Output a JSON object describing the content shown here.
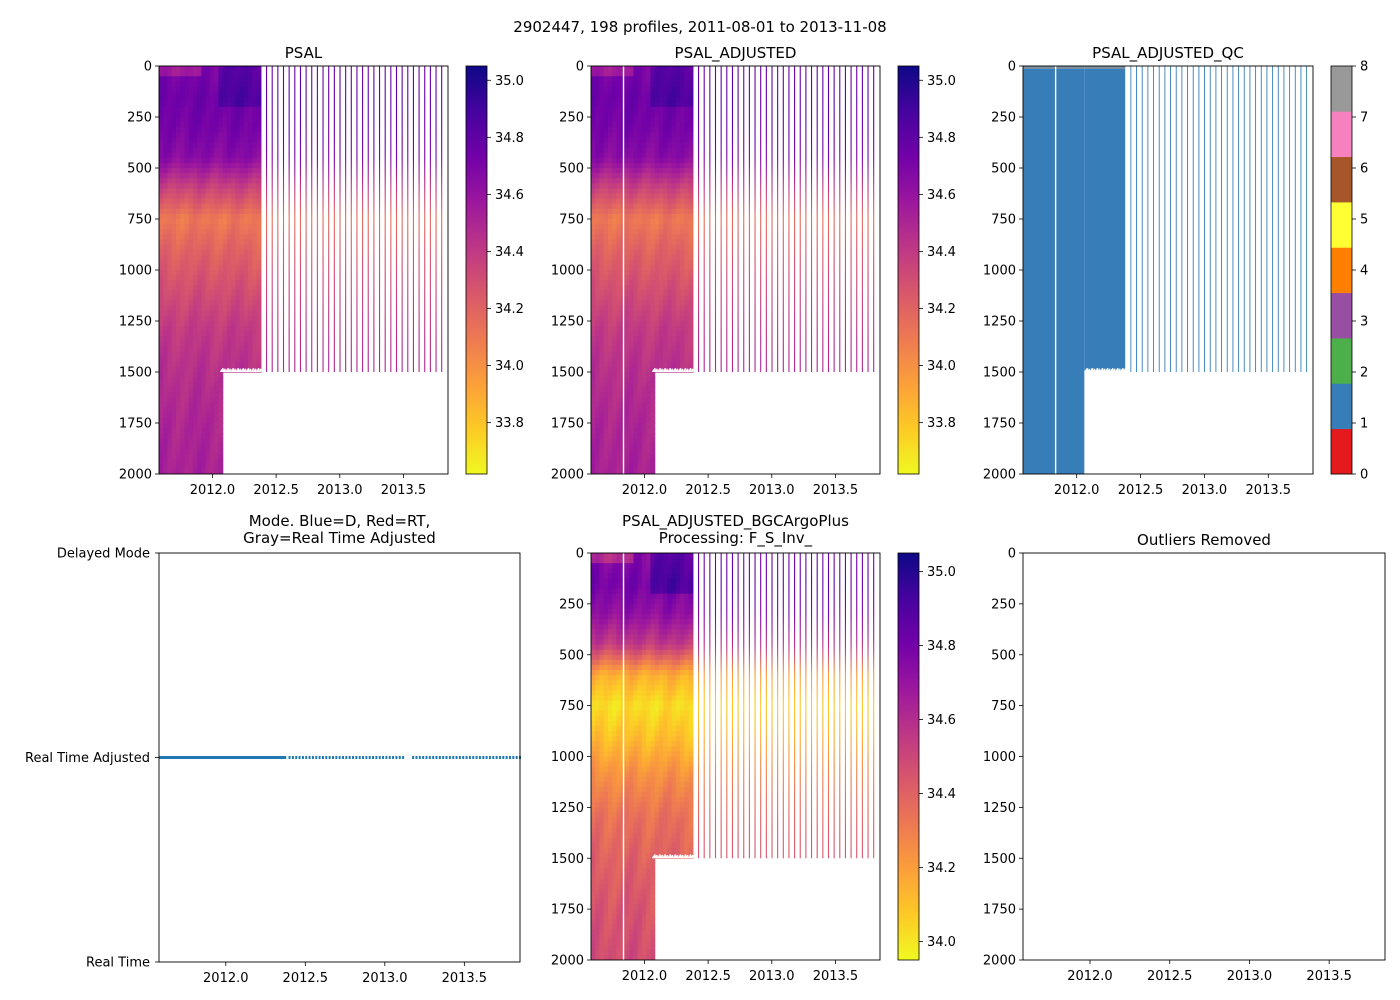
{
  "figure": {
    "suptitle": "2902447, 198 profiles, 2011-08-01 to 2013-11-08"
  },
  "colors": {
    "plasma": [
      "#0d0887",
      "#46039f",
      "#7201a8",
      "#9c179e",
      "#bd3786",
      "#d8576b",
      "#ed7953",
      "#fb9f3a",
      "#fdca26",
      "#f0f921"
    ],
    "qc": [
      "#e41a1c",
      "#377eb8",
      "#4daf4a",
      "#984ea3",
      "#ff7f00",
      "#ffff33",
      "#a65628",
      "#f781bf",
      "#999999"
    ],
    "mode_line": "#1f77b4"
  },
  "chart_data": [
    {
      "id": "psal",
      "type": "heatmap",
      "title": "PSAL",
      "title_line2": "",
      "xlim": [
        2011.58,
        2013.85
      ],
      "ylim": [
        2000,
        0
      ],
      "xticks": [
        "2012.0",
        "2012.5",
        "2013.0",
        "2013.5"
      ],
      "xtick_values": [
        2012.0,
        2012.5,
        2013.0,
        2013.5
      ],
      "yticks": [
        "0",
        "250",
        "500",
        "750",
        "1000",
        "1250",
        "1500",
        "1750",
        "2000"
      ],
      "ytick_values": [
        0,
        250,
        500,
        750,
        1000,
        1250,
        1500,
        1750,
        2000
      ],
      "colorbar": {
        "cmap": "plasma_r",
        "range": [
          33.62,
          35.05
        ],
        "ticks": [
          "33.8",
          "34.0",
          "34.2",
          "34.4",
          "34.6",
          "34.8",
          "35.0"
        ],
        "tick_values": [
          33.8,
          34.0,
          34.2,
          34.4,
          34.6,
          34.8,
          35.0
        ]
      },
      "dense_until": 2012.38,
      "deep_until": 2012.06,
      "shallow_max_depth": 1500,
      "sparse_end": 2013.8,
      "sparse_count": 32,
      "gap_at": null,
      "profile": [
        [
          0,
          34.7
        ],
        [
          150,
          34.75
        ],
        [
          300,
          34.72
        ],
        [
          450,
          34.65
        ],
        [
          600,
          34.35
        ],
        [
          750,
          34.1
        ],
        [
          900,
          34.2
        ],
        [
          1100,
          34.3
        ],
        [
          1300,
          34.4
        ],
        [
          1500,
          34.45
        ],
        [
          1750,
          34.5
        ],
        [
          2000,
          34.52
        ]
      ]
    },
    {
      "id": "psal_adjusted",
      "type": "heatmap",
      "title": "PSAL_ADJUSTED",
      "title_line2": "",
      "xlim": [
        2011.58,
        2013.85
      ],
      "ylim": [
        2000,
        0
      ],
      "xticks": [
        "2012.0",
        "2012.5",
        "2013.0",
        "2013.5"
      ],
      "xtick_values": [
        2012.0,
        2012.5,
        2013.0,
        2013.5
      ],
      "yticks": [
        "0",
        "250",
        "500",
        "750",
        "1000",
        "1250",
        "1500",
        "1750",
        "2000"
      ],
      "ytick_values": [
        0,
        250,
        500,
        750,
        1000,
        1250,
        1500,
        1750,
        2000
      ],
      "colorbar": {
        "cmap": "plasma_r",
        "range": [
          33.62,
          35.05
        ],
        "ticks": [
          "33.8",
          "34.0",
          "34.2",
          "34.4",
          "34.6",
          "34.8",
          "35.0"
        ],
        "tick_values": [
          33.8,
          34.0,
          34.2,
          34.4,
          34.6,
          34.8,
          35.0
        ]
      },
      "dense_until": 2012.38,
      "deep_until": 2012.06,
      "shallow_max_depth": 1500,
      "sparse_end": 2013.8,
      "sparse_count": 32,
      "gap_at": 2011.83,
      "profile": [
        [
          0,
          34.7
        ],
        [
          150,
          34.75
        ],
        [
          300,
          34.72
        ],
        [
          450,
          34.65
        ],
        [
          600,
          34.35
        ],
        [
          750,
          34.1
        ],
        [
          900,
          34.2
        ],
        [
          1100,
          34.3
        ],
        [
          1300,
          34.4
        ],
        [
          1500,
          34.45
        ],
        [
          1750,
          34.5
        ],
        [
          2000,
          34.52
        ]
      ]
    },
    {
      "id": "psal_adjusted_qc",
      "type": "heatmap",
      "title": "PSAL_ADJUSTED_QC",
      "title_line2": "",
      "xlim": [
        2011.58,
        2013.85
      ],
      "ylim": [
        2000,
        0
      ],
      "xticks": [
        "2012.0",
        "2012.5",
        "2013.0",
        "2013.5"
      ],
      "xtick_values": [
        2012.0,
        2012.5,
        2013.0,
        2013.5
      ],
      "yticks": [
        "0",
        "250",
        "500",
        "750",
        "1000",
        "1250",
        "1500",
        "1750",
        "2000"
      ],
      "ytick_values": [
        0,
        250,
        500,
        750,
        1000,
        1250,
        1500,
        1750,
        2000
      ],
      "colorbar": {
        "cmap": "qc",
        "range": [
          0,
          8
        ],
        "ticks": [
          "0",
          "1",
          "2",
          "3",
          "4",
          "5",
          "6",
          "7",
          "8"
        ],
        "tick_values": [
          0,
          1,
          2,
          3,
          4,
          5,
          6,
          7,
          8
        ]
      },
      "qc_value": 1,
      "dense_until": 2012.38,
      "deep_until": 2012.06,
      "shallow_max_depth": 1500,
      "sparse_end": 2013.8,
      "sparse_count": 32,
      "gap_at": 2011.83
    },
    {
      "id": "mode",
      "type": "line",
      "title": "Mode. Blue=D, Red=RT,",
      "title_line2": "Gray=Real Time Adjusted",
      "xlim": [
        2011.58,
        2013.85
      ],
      "xticks": [
        "2012.0",
        "2012.5",
        "2013.0",
        "2013.5"
      ],
      "xtick_values": [
        2012.0,
        2012.5,
        2013.0,
        2013.5
      ],
      "ylim": [
        0,
        2
      ],
      "categories": [
        "Delayed Mode",
        "Real Time Adjusted",
        "Real Time"
      ],
      "category_values": [
        0,
        1,
        2
      ],
      "series": [
        {
          "name": "mode",
          "value": 1,
          "dense_from": 2011.58,
          "dense_until": 2012.38,
          "sparse_end": 2013.85,
          "sparse_count": 32,
          "gap": [
            2013.12,
            2013.17
          ]
        }
      ]
    },
    {
      "id": "psal_adjusted_bgc",
      "type": "heatmap",
      "title": "PSAL_ADJUSTED_BGCArgoPlus",
      "title_line2": "Processing: F_S_Inv_",
      "xlim": [
        2011.58,
        2013.85
      ],
      "ylim": [
        2000,
        0
      ],
      "xticks": [
        "2012.0",
        "2012.5",
        "2013.0",
        "2013.5"
      ],
      "xtick_values": [
        2012.0,
        2012.5,
        2013.0,
        2013.5
      ],
      "yticks": [
        "0",
        "250",
        "500",
        "750",
        "1000",
        "1250",
        "1500",
        "1750",
        "2000"
      ],
      "ytick_values": [
        0,
        250,
        500,
        750,
        1000,
        1250,
        1500,
        1750,
        2000
      ],
      "colorbar": {
        "cmap": "plasma_r",
        "range": [
          33.95,
          35.05
        ],
        "ticks": [
          "34.0",
          "34.2",
          "34.4",
          "34.6",
          "34.8",
          "35.0"
        ],
        "tick_values": [
          34.0,
          34.2,
          34.4,
          34.6,
          34.8,
          35.0
        ]
      },
      "dense_until": 2012.38,
      "deep_until": 2012.06,
      "shallow_max_depth": 1500,
      "sparse_end": 2013.8,
      "sparse_count": 32,
      "gap_at": 2011.83,
      "profile": [
        [
          0,
          34.75
        ],
        [
          150,
          34.8
        ],
        [
          300,
          34.72
        ],
        [
          450,
          34.55
        ],
        [
          600,
          34.15
        ],
        [
          750,
          34.02
        ],
        [
          900,
          34.1
        ],
        [
          1100,
          34.25
        ],
        [
          1300,
          34.35
        ],
        [
          1500,
          34.4
        ],
        [
          1750,
          34.45
        ],
        [
          2000,
          34.48
        ]
      ]
    },
    {
      "id": "outliers",
      "type": "scatter",
      "title": "Outliers Removed",
      "title_line2": "",
      "xlim": [
        2011.58,
        2013.85
      ],
      "ylim": [
        2000,
        0
      ],
      "xticks": [
        "2012.0",
        "2012.5",
        "2013.0",
        "2013.5"
      ],
      "xtick_values": [
        2012.0,
        2012.5,
        2013.0,
        2013.5
      ],
      "yticks": [
        "0",
        "250",
        "500",
        "750",
        "1000",
        "1250",
        "1500",
        "1750",
        "2000"
      ],
      "ytick_values": [
        0,
        250,
        500,
        750,
        1000,
        1250,
        1500,
        1750,
        2000
      ],
      "points": []
    }
  ]
}
